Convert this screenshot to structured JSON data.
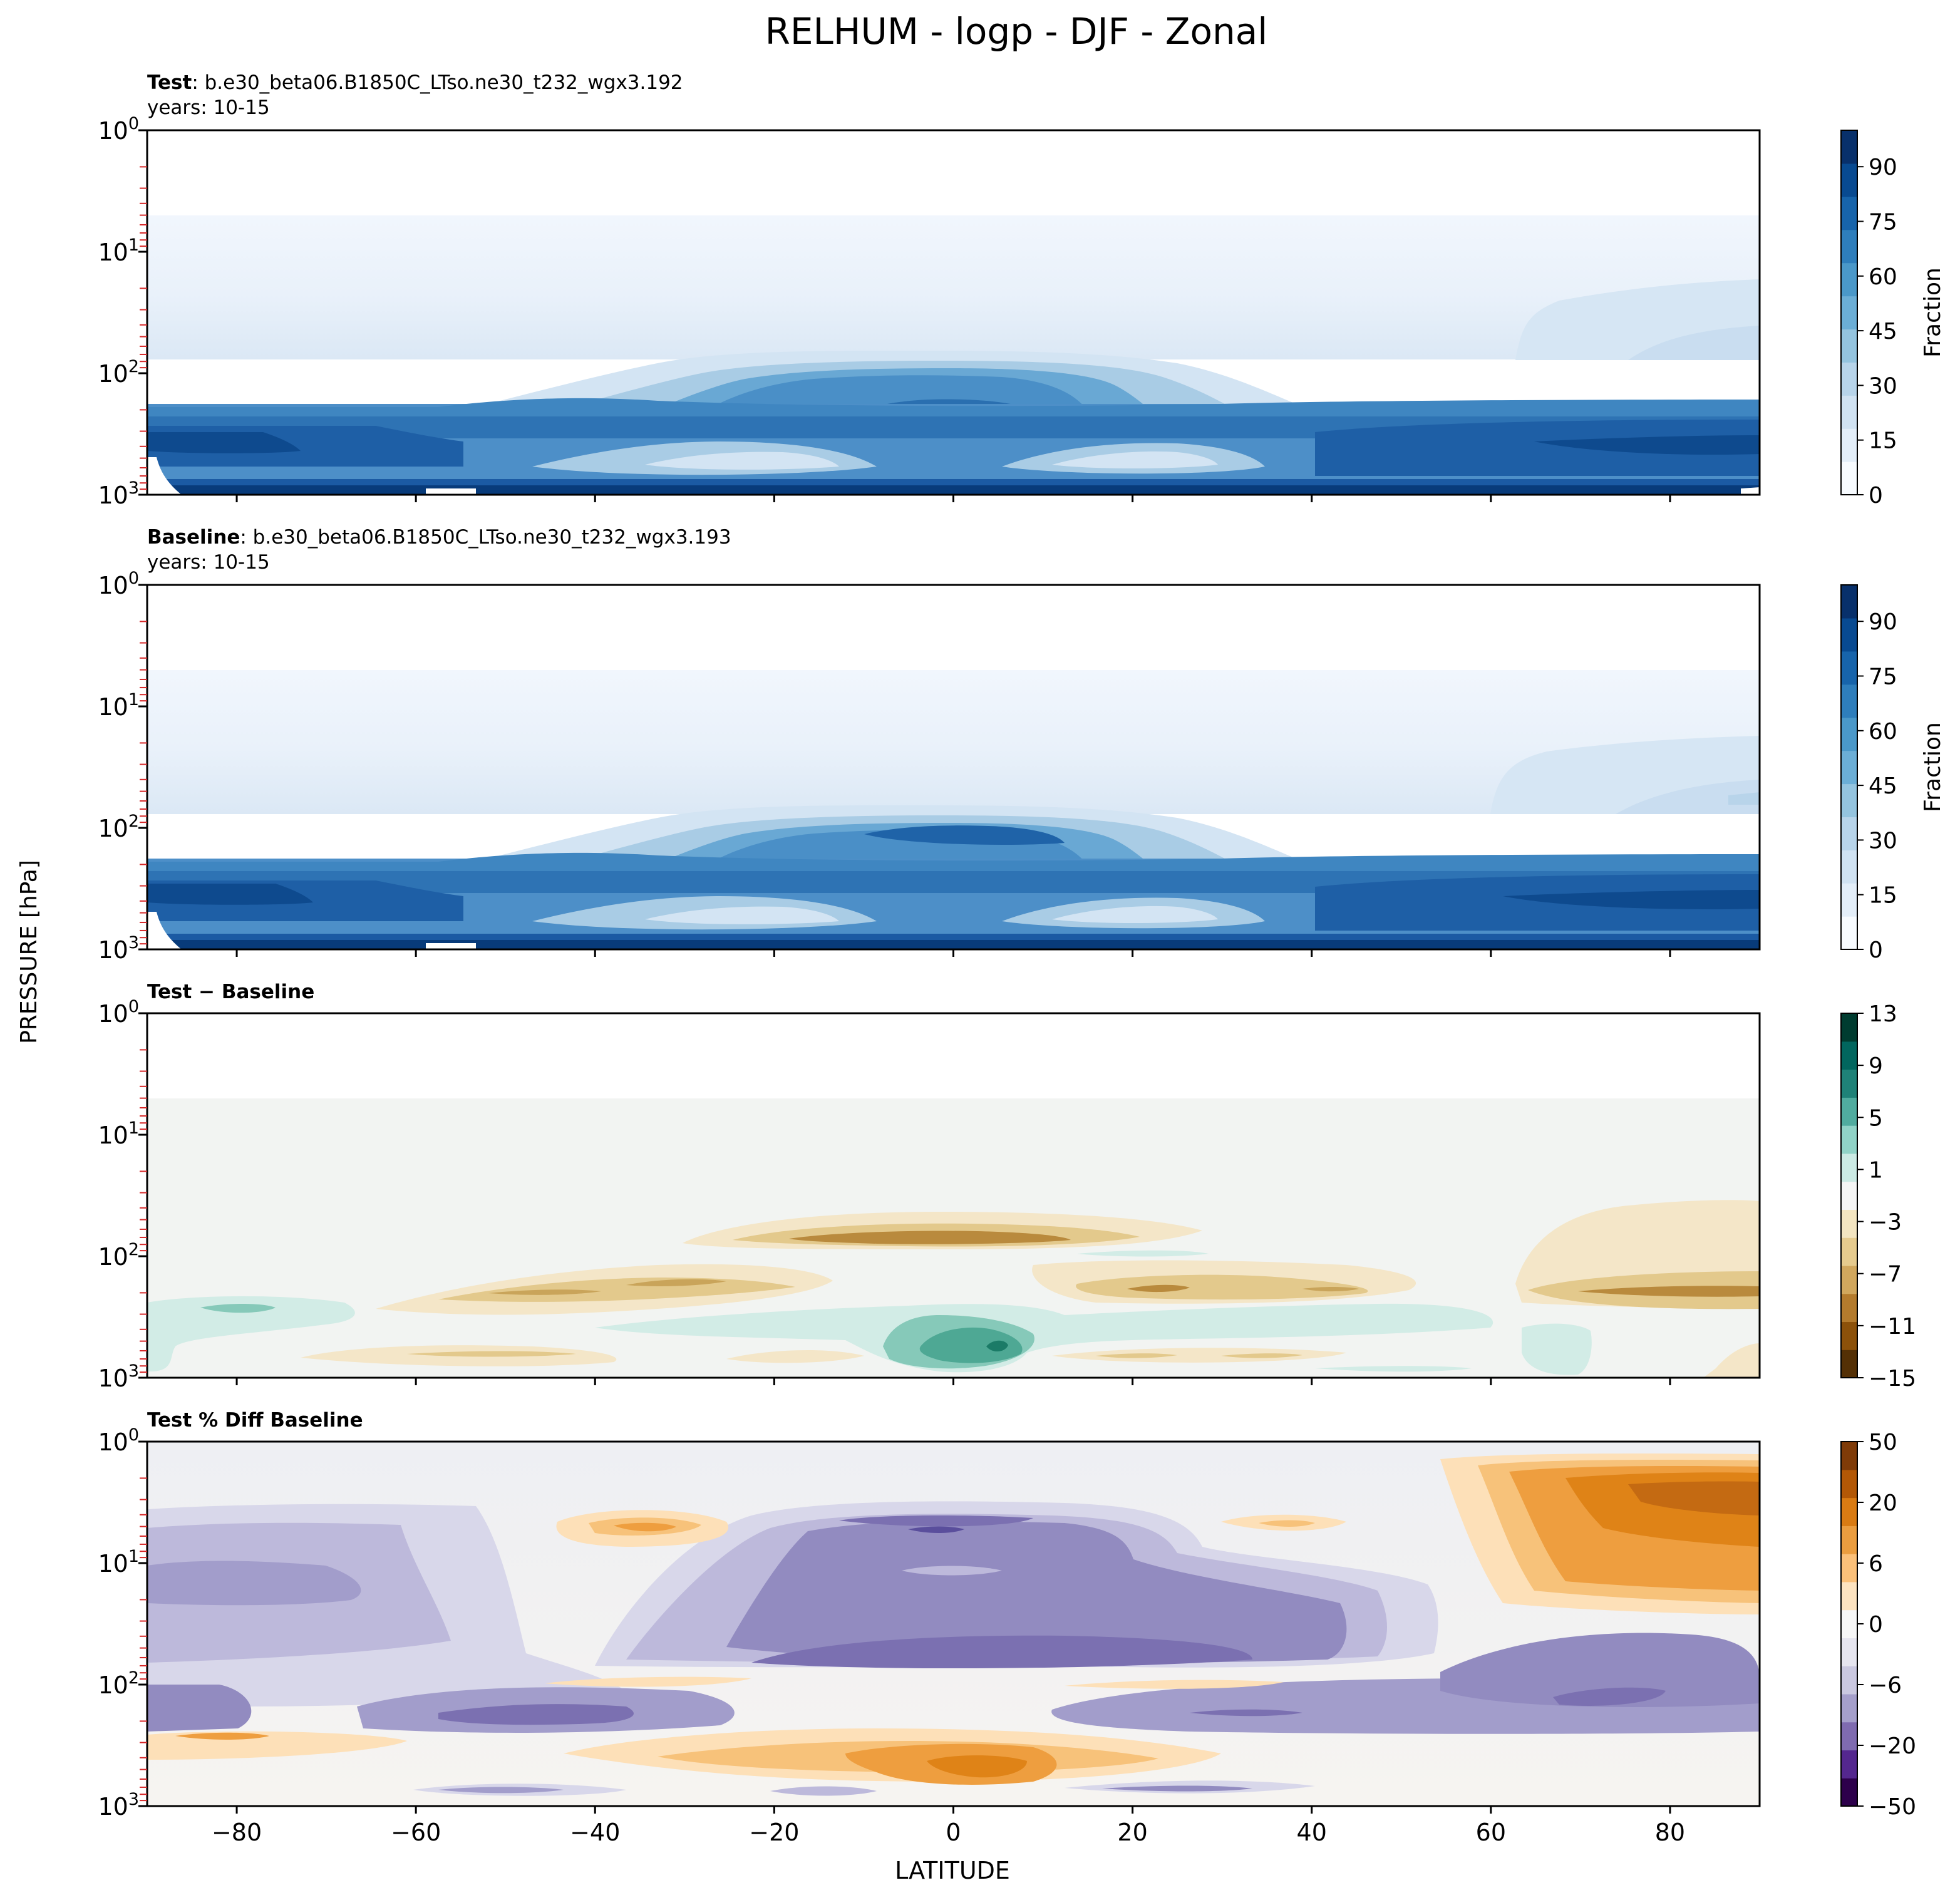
{
  "figure": {
    "title": "RELHUM - logp - DJF - Zonal",
    "ylabel": "PRESSURE [hPa]",
    "xlabel": "LATITUDE"
  },
  "chart_data": [
    {
      "type": "heatmap",
      "panel": "test",
      "header_bold": "Test",
      "header_text": ": b.e30_beta06.B1850C_LTso.ne30_t232_wgx3.192",
      "subheader": "years: 10-15",
      "xlim": [
        -90,
        90
      ],
      "ylim": [
        1000,
        1
      ],
      "yscale": "log",
      "x_ticks": [
        -80,
        -60,
        -40,
        -20,
        0,
        20,
        40,
        60,
        80
      ],
      "y_ticks": [
        {
          "base": "10",
          "exp": "0"
        },
        {
          "base": "10",
          "exp": "1"
        },
        {
          "base": "10",
          "exp": "2"
        },
        {
          "base": "10",
          "exp": "3"
        }
      ],
      "colorbar": {
        "label": "Fraction",
        "min": 0,
        "max": 100,
        "ticks": [
          "0",
          "15",
          "30",
          "45",
          "60",
          "75",
          "90"
        ],
        "colormap": "Blues"
      },
      "features": [
        {
          "lat": [
            -90,
            -50
          ],
          "p": [
            250,
            600
          ],
          "value": 85
        },
        {
          "lat": [
            65,
            90
          ],
          "p": [
            250,
            600
          ],
          "value": 85
        },
        {
          "lat": [
            -12,
            12
          ],
          "p": [
            90,
            130
          ],
          "value": 75
        }
      ]
    },
    {
      "type": "heatmap",
      "panel": "baseline",
      "header_bold": "Baseline",
      "header_text": ": b.e30_beta06.B1850C_LTso.ne30_t232_wgx3.193",
      "subheader": "years: 10-15",
      "xlim": [
        -90,
        90
      ],
      "ylim": [
        1000,
        1
      ],
      "yscale": "log",
      "x_ticks": [
        -80,
        -60,
        -40,
        -20,
        0,
        20,
        40,
        60,
        80
      ],
      "y_ticks": [
        {
          "base": "10",
          "exp": "0"
        },
        {
          "base": "10",
          "exp": "1"
        },
        {
          "base": "10",
          "exp": "2"
        },
        {
          "base": "10",
          "exp": "3"
        }
      ],
      "colorbar": {
        "label": "Fraction",
        "min": 0,
        "max": 100,
        "ticks": [
          "0",
          "15",
          "30",
          "45",
          "60",
          "75",
          "90"
        ],
        "colormap": "Blues"
      }
    },
    {
      "type": "heatmap",
      "panel": "diff",
      "header_bold": "Test − Baseline",
      "header_text": "",
      "subheader": "",
      "xlim": [
        -90,
        90
      ],
      "ylim": [
        1000,
        1
      ],
      "yscale": "log",
      "x_ticks": [
        -80,
        -60,
        -40,
        -20,
        0,
        20,
        40,
        60,
        80
      ],
      "y_ticks": [
        {
          "base": "10",
          "exp": "0"
        },
        {
          "base": "10",
          "exp": "1"
        },
        {
          "base": "10",
          "exp": "2"
        },
        {
          "base": "10",
          "exp": "3"
        }
      ],
      "colorbar": {
        "label": "",
        "min": -15,
        "max": 13,
        "ticks": [
          "−15",
          "−11",
          "−7",
          "−3",
          "1",
          "5",
          "9",
          "13"
        ],
        "colormap": "BrBG"
      },
      "features": [
        {
          "lat": [
            -12,
            20
          ],
          "p": [
            70,
            90
          ],
          "value": -9
        },
        {
          "lat": [
            -5,
            10
          ],
          "p": [
            350,
            500
          ],
          "value": 9
        },
        {
          "lat": [
            65,
            90
          ],
          "p": [
            180,
            220
          ],
          "value": -8
        }
      ]
    },
    {
      "type": "heatmap",
      "panel": "pct_diff",
      "header_bold": "Test % Diff Baseline",
      "header_text": "",
      "subheader": "",
      "xlim": [
        -90,
        90
      ],
      "ylim": [
        1000,
        1
      ],
      "yscale": "log",
      "x_ticks": [
        -80,
        -60,
        -40,
        -20,
        0,
        20,
        40,
        60,
        80
      ],
      "y_ticks": [
        {
          "base": "10",
          "exp": "0"
        },
        {
          "base": "10",
          "exp": "1"
        },
        {
          "base": "10",
          "exp": "2"
        },
        {
          "base": "10",
          "exp": "3"
        }
      ],
      "colorbar": {
        "label": "",
        "min": -100,
        "max": 100,
        "ticks": [
          "−50",
          "−20",
          "−6",
          "0",
          "6",
          "20",
          "50"
        ],
        "colormap": "PuOr"
      },
      "features": [
        {
          "lat": [
            -20,
            30
          ],
          "p": [
            10,
            100
          ],
          "value": -25
        },
        {
          "lat": [
            65,
            90
          ],
          "p": [
            5,
            30
          ],
          "value": 30
        },
        {
          "lat": [
            -10,
            15
          ],
          "p": [
            350,
            500
          ],
          "value": 25
        }
      ]
    }
  ]
}
